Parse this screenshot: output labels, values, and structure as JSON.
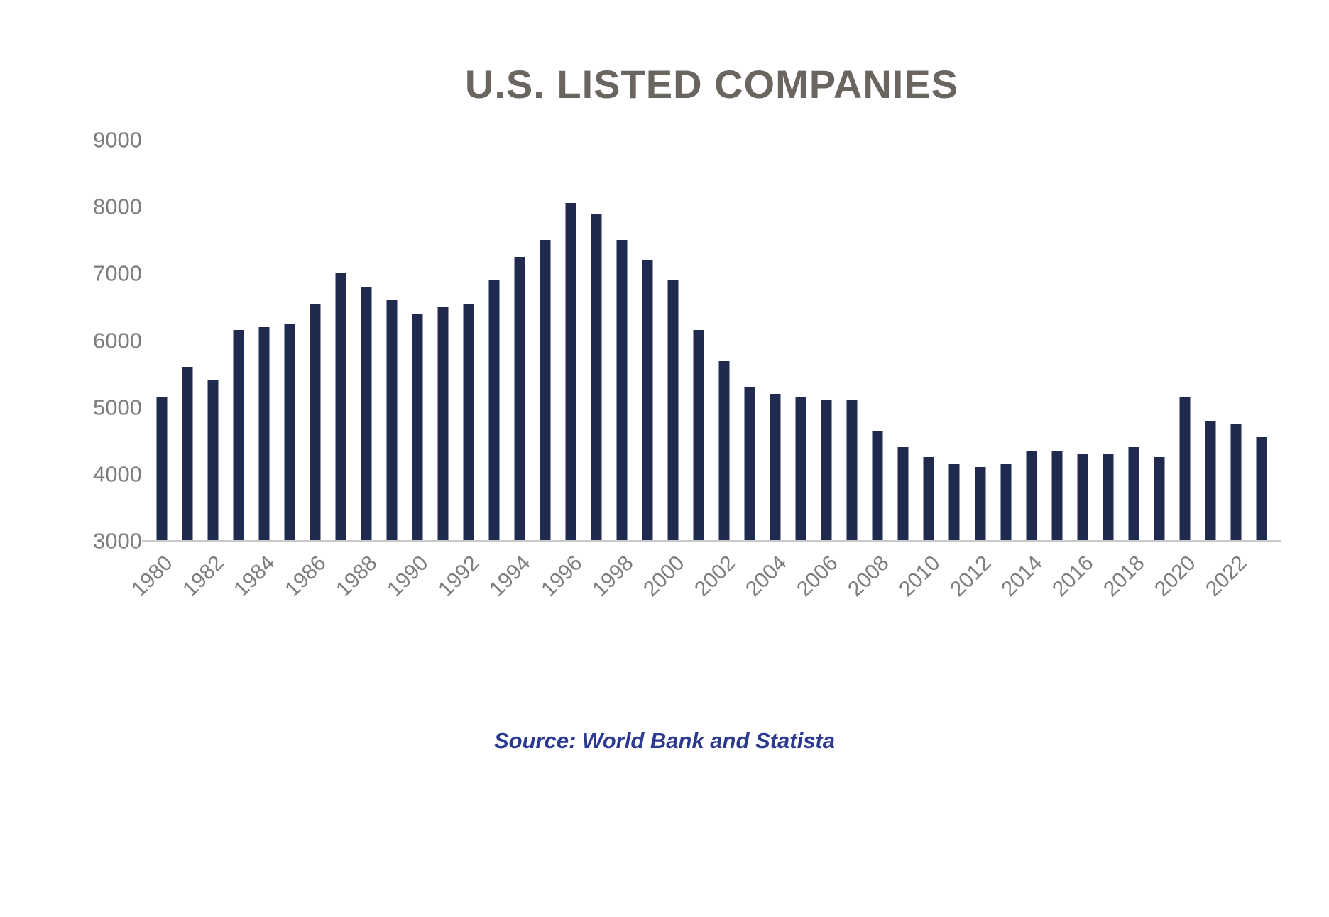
{
  "source": "Source: World Bank and Statista",
  "colors": {
    "bar": "#1f2a4e",
    "title": "#6b655f",
    "axis_label": "#7d7d7d",
    "source_text": "#2b3990",
    "gridline": "#c9c9c9"
  },
  "chart_data": {
    "type": "bar",
    "title": "U.S. LISTED COMPANIES",
    "xlabel": "",
    "ylabel": "",
    "ylim": [
      3000,
      9000
    ],
    "yticks": [
      3000,
      4000,
      5000,
      6000,
      7000,
      8000,
      9000
    ],
    "grid": false,
    "legend": "none",
    "x": [
      1980,
      1981,
      1982,
      1983,
      1984,
      1985,
      1986,
      1987,
      1988,
      1989,
      1990,
      1991,
      1992,
      1993,
      1994,
      1995,
      1996,
      1997,
      1998,
      1999,
      2000,
      2001,
      2002,
      2003,
      2004,
      2005,
      2006,
      2007,
      2008,
      2009,
      2010,
      2011,
      2012,
      2013,
      2014,
      2015,
      2016,
      2017,
      2018,
      2019,
      2020,
      2021,
      2022,
      2023
    ],
    "values": [
      5150,
      5600,
      5400,
      6150,
      6200,
      6250,
      6550,
      7000,
      6800,
      6600,
      6400,
      6500,
      6550,
      6900,
      7250,
      7500,
      8050,
      7900,
      7500,
      7200,
      6900,
      6150,
      5700,
      5300,
      5200,
      5150,
      5100,
      5100,
      4650,
      4400,
      4250,
      4150,
      4100,
      4150,
      4350,
      4350,
      4300,
      4300,
      4400,
      4250,
      5150,
      4800,
      4750,
      4550
    ],
    "xtick_labels": [
      "1980",
      "1982",
      "1984",
      "1986",
      "1988",
      "1990",
      "1992",
      "1994",
      "1996",
      "1998",
      "2000",
      "2002",
      "2004",
      "2006",
      "2008",
      "2010",
      "2012",
      "2014",
      "2016",
      "2018",
      "2020",
      "2022"
    ]
  }
}
